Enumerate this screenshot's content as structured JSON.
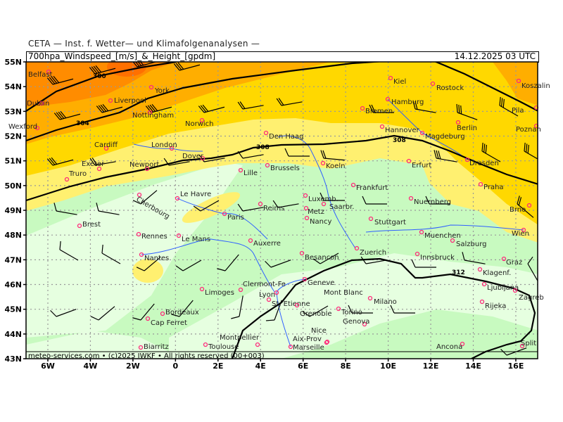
{
  "header": {
    "supertitle": "CETA — Inst. f. Wetter— und Klimafolgenanalysen —",
    "title": "700hpa_Windspeed_[m/s]_&_Height_[gpdm]",
    "datetime": "14.12.2025 03 UTC"
  },
  "footer": "meteo-services.com • (c)2025 IWKF • All rights reserved (00+003)",
  "axes": {
    "lat_labels": [
      "55N",
      "54N",
      "53N",
      "52N",
      "51N",
      "50N",
      "49N",
      "48N",
      "47N",
      "46N",
      "45N",
      "44N",
      "43N"
    ],
    "lon_labels": [
      "6W",
      "4W",
      "2W",
      "0",
      "2E",
      "4E",
      "6E",
      "8E",
      "10E",
      "12E",
      "14E",
      "16E"
    ]
  },
  "contours": {
    "labels": [
      "300",
      "304",
      "308",
      "308",
      "312"
    ]
  },
  "colors": {
    "very_light_green": "#e6ffe0",
    "light_green": "#c8fac0",
    "light_yellow": "#fff070",
    "yellow": "#ffd800",
    "orange": "#ffae00",
    "dark_orange": "#ff8c00",
    "city_marker": "#ff2a7a",
    "river": "#3060ff",
    "landmark": "#00cc00"
  },
  "cities": [
    "Belfast",
    "Dublin",
    "Wexford",
    "Liverpool",
    "York",
    "Nottingham",
    "Norwich",
    "Cardiff",
    "London",
    "Exeter",
    "Truro",
    "Newport",
    "Dover",
    "Den Haag",
    "Brussels",
    "Lille",
    "Le Havre",
    "Cherbourg",
    "Brest",
    "Rennes",
    "Le Mans",
    "Paris",
    "Reims",
    "Nantes",
    "Auxerre",
    "Limoges",
    "Clermont-Fe",
    "Bordeaux",
    "Cap Ferret",
    "Biarritz",
    "Toulouse",
    "Montpellier",
    "Lyon",
    "St. Etienne",
    "Grenoble",
    "Geneve",
    "Besancon",
    "Kiel",
    "Rostock",
    "Hamburg",
    "Bremen",
    "Hannover",
    "Magdeburg",
    "Berlin",
    "Koszalin",
    "Pila",
    "Poznan",
    "Koeln",
    "Erfurt",
    "Dresden",
    "Frankfurt",
    "Praha",
    "Luxemb.",
    "Nuernberg",
    "Saarbr.",
    "Metz",
    "Nancy",
    "Stuttgart",
    "Brno",
    "Muenchen",
    "Salzburg",
    "Wien",
    "Zuerich",
    "Innsbruck",
    "Graz",
    "Klagenf.",
    "Ljubljana",
    "Zagreb",
    "Rijeka",
    "Milano",
    "Torino",
    "Genova",
    "Nice",
    "Aix-Prov",
    "Marseille",
    "Ancona",
    "Split"
  ],
  "landmark": "Mont Blanc"
}
